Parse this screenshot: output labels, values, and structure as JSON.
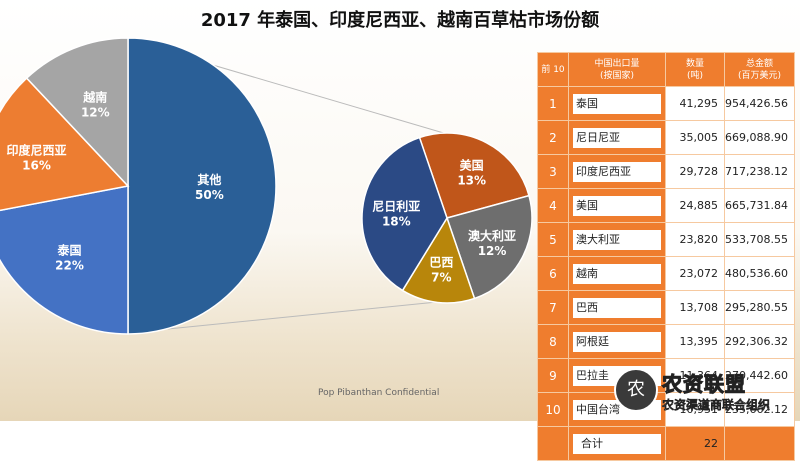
{
  "title": "2017 年泰国、印度尼西亚、越南百草枯市场份额",
  "confidential": "Pop Pibanthan Confidential",
  "chart_data": [
    {
      "type": "pie",
      "slices": [
        {
          "label": "其他",
          "pct": "50%",
          "value": 50,
          "color": "#2a5f97"
        },
        {
          "label": "泰国",
          "pct": "22%",
          "value": 22,
          "color": "#4472c4"
        },
        {
          "label": "印度尼西亚",
          "pct": "16%",
          "value": 16,
          "color": "#ed7d31"
        },
        {
          "label": "越南",
          "pct": "12%",
          "value": 12,
          "color": "#a5a5a5"
        }
      ]
    },
    {
      "type": "pie",
      "slices": [
        {
          "label": "美国",
          "pct": "13%",
          "value": 13,
          "color": "#c0561a"
        },
        {
          "label": "澳大利亚",
          "pct": "12%",
          "value": 12,
          "color": "#6e6e6e"
        },
        {
          "label": "巴西",
          "pct": "7%",
          "value": 7,
          "color": "#b8860b"
        },
        {
          "label": "尼日利亚",
          "pct": "18%",
          "value": 18,
          "color": "#2b4a85"
        }
      ]
    },
    {
      "type": "table",
      "headers": [
        "前 10",
        "中国出口量\n(按国家)",
        "数量\n(吨)",
        "总金额\n(百万美元)"
      ],
      "rows": [
        {
          "rank": "1",
          "country": "泰国",
          "qty": "41,295",
          "amount": "954,426.56"
        },
        {
          "rank": "2",
          "country": "尼日尼亚",
          "qty": "35,005",
          "amount": "669,088.90"
        },
        {
          "rank": "3",
          "country": "印度尼西亚",
          "qty": "29,728",
          "amount": "717,238.12"
        },
        {
          "rank": "4",
          "country": "美国",
          "qty": "24,885",
          "amount": "665,731.84"
        },
        {
          "rank": "5",
          "country": "澳大利亚",
          "qty": "23,820",
          "amount": "533,708.55"
        },
        {
          "rank": "6",
          "country": "越南",
          "qty": "23,072",
          "amount": "480,536.60"
        },
        {
          "rank": "7",
          "country": "巴西",
          "qty": "13,708",
          "amount": "295,280.55"
        },
        {
          "rank": "8",
          "country": "阿根廷",
          "qty": "13,395",
          "amount": "292,306.32"
        },
        {
          "rank": "9",
          "country": "巴拉圭",
          "qty": "11,364",
          "amount": "270,442.60"
        },
        {
          "rank": "10",
          "country": "中国台湾",
          "qty": "10,951",
          "amount": "235,662.12"
        }
      ],
      "total": {
        "label": "合计",
        "qty": "22"
      }
    }
  ],
  "watermark": {
    "logo": "农",
    "line1": "农资联盟",
    "line2": "农资渠道商联合组织"
  }
}
